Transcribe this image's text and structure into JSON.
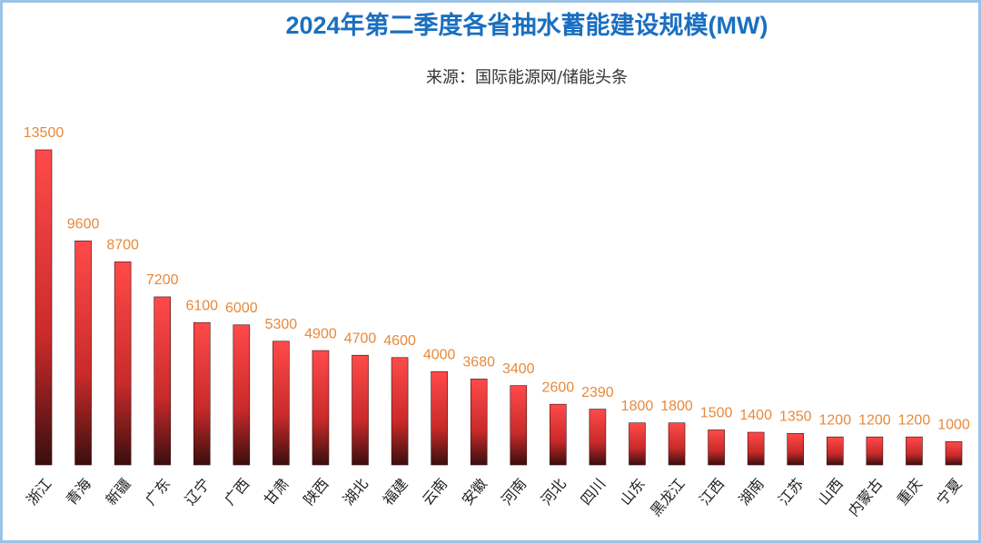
{
  "chart_data": {
    "type": "bar",
    "title": "2024年第二季度各省抽水蓄能建设规模(MW)",
    "subtitle": "来源：国际能源网/储能头条",
    "categories": [
      "浙江",
      "青海",
      "新疆",
      "广东",
      "辽宁",
      "广西",
      "甘肃",
      "陕西",
      "湖北",
      "福建",
      "云南",
      "安徽",
      "河南",
      "河北",
      "四川",
      "山东",
      "黑龙江",
      "江西",
      "湖南",
      "江苏",
      "山西",
      "内蒙古",
      "重庆",
      "宁夏"
    ],
    "values": [
      13500,
      9600,
      8700,
      7200,
      6100,
      6000,
      5300,
      4900,
      4700,
      4600,
      4000,
      3680,
      3400,
      2600,
      2390,
      1800,
      1800,
      1500,
      1400,
      1350,
      1200,
      1200,
      1200,
      1000
    ],
    "color": "#f04040"
  }
}
